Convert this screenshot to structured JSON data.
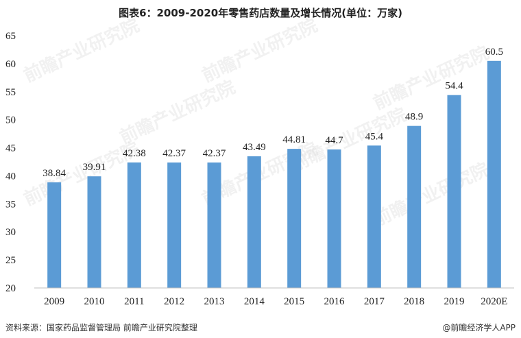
{
  "title": "图表6：2009-2020年零售药店数量及增长情况(单位：万家)",
  "source": "资料来源：国家药品监督管理局 前瞻产业研究院整理",
  "brand": "@前瞻经济学人APP",
  "watermark": "前瞻产业研究院",
  "colors": {
    "bar": "#5b9bd5",
    "axis": "#bfbfbf"
  },
  "chart_data": {
    "type": "bar",
    "title": "图表6：2009-2020年零售药店数量及增长情况(单位：万家)",
    "categories": [
      "2009",
      "2010",
      "2011",
      "2012",
      "2013",
      "2014",
      "2015",
      "2016",
      "2017",
      "2018",
      "2019",
      "2020E"
    ],
    "values": [
      38.84,
      39.91,
      42.38,
      42.37,
      42.37,
      43.49,
      44.81,
      44.7,
      45.4,
      48.9,
      54.4,
      60.5
    ],
    "value_labels": [
      "38.84",
      "39.91",
      "42.38",
      "42.37",
      "42.37",
      "43.49",
      "44.81",
      "44.7",
      "45.4",
      "48.9",
      "54.4",
      "60.5"
    ],
    "ylim": [
      20,
      65
    ],
    "yticks": [
      20,
      25,
      30,
      35,
      40,
      45,
      50,
      55,
      60,
      65
    ],
    "xlabel": "",
    "ylabel": "",
    "grid": false,
    "legend": "none"
  }
}
